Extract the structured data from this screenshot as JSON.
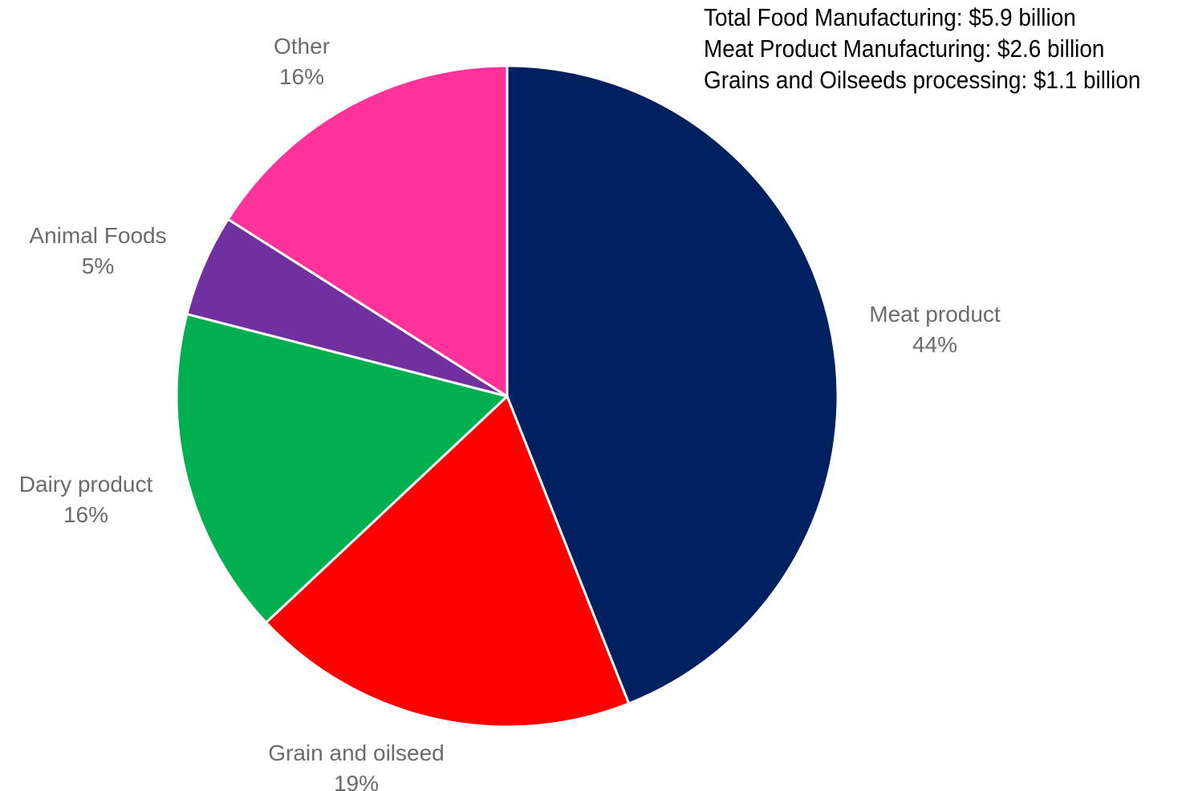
{
  "chart_data": {
    "type": "pie",
    "title": "",
    "start_angle_deg": 0,
    "direction": "clockwise",
    "slices": [
      {
        "label": "Meat product",
        "value": 44,
        "display": "44%",
        "color": "#002060"
      },
      {
        "label": "Grain and oilseed",
        "value": 19,
        "display": "19%",
        "color": "#ff0000"
      },
      {
        "label": "Dairy product",
        "value": 16,
        "display": "16%",
        "color": "#00b050"
      },
      {
        "label": "Animal Foods",
        "value": 5,
        "display": "5%",
        "color": "#7030a0"
      },
      {
        "label": "Other",
        "value": 16,
        "display": "16%",
        "color": "#ff3399"
      }
    ],
    "annotations": [
      "Total Food Manufacturing: $5.9 billion",
      "Meat Product Manufacturing: $2.6 billion",
      "Grains and Oilseeds processing: $1.1 billion"
    ],
    "label_color": "#6b6b6b",
    "slice_border_color": "#ffffff"
  }
}
